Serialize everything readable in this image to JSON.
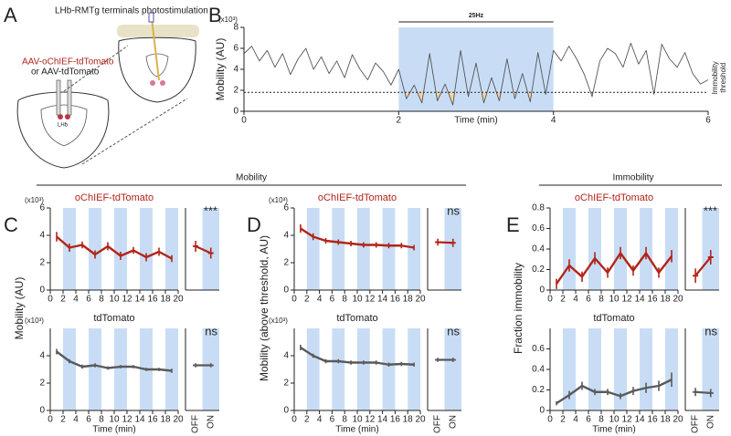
{
  "figure": {
    "letters": [
      "A",
      "B",
      "C",
      "D",
      "E"
    ],
    "groups": [
      "Mobility",
      "Immobility"
    ]
  },
  "diagram": {
    "title": "LHb-RMTg terminals photostimulation",
    "virus": "AAV-oChIEF-tdTomato",
    "virus_alt": "or AAV-tdTomato",
    "region": "LHb"
  },
  "chart_data": [
    {
      "type": "line",
      "x": [
        0,
        0.1,
        0.2,
        0.3,
        0.4,
        0.5,
        0.6,
        0.7,
        0.8,
        0.9,
        1,
        1.1,
        1.2,
        1.3,
        1.4,
        1.5,
        1.6,
        1.7,
        1.8,
        1.9,
        2,
        2.1,
        2.2,
        2.3,
        2.4,
        2.5,
        2.6,
        2.7,
        2.8,
        2.9,
        3,
        3.1,
        3.2,
        3.3,
        3.4,
        3.5,
        3.6,
        3.7,
        3.8,
        3.9,
        4,
        4.1,
        4.2,
        4.3,
        4.4,
        4.5,
        4.6,
        4.7,
        4.8,
        4.9,
        5,
        5.1,
        5.2,
        5.3,
        5.4,
        5.5,
        5.6,
        5.7,
        5.8,
        5.9,
        6
      ],
      "values": [
        5.5,
        6.2,
        4.8,
        5.8,
        4.2,
        5.5,
        3.5,
        5.0,
        6.0,
        4.0,
        5.2,
        3.6,
        4.8,
        3.2,
        5.4,
        4.0,
        3.0,
        4.6,
        3.8,
        2.5,
        4.0,
        1.2,
        2.5,
        0.8,
        5.5,
        1.0,
        2.6,
        0.6,
        5.8,
        1.4,
        4.6,
        0.8,
        3.2,
        1.0,
        5.0,
        1.2,
        3.6,
        0.9,
        5.6,
        1.6,
        5.8,
        4.8,
        6.2,
        5.0,
        3.5,
        1.4,
        4.8,
        6.0,
        5.5,
        4.2,
        6.5,
        4.5,
        5.8,
        1.6,
        6.4,
        5.0,
        4.2,
        5.6,
        3.6,
        2.6,
        3.0
      ],
      "color": "#555555",
      "xlim": [
        0,
        6
      ],
      "xticks": [
        0,
        2,
        4,
        6
      ],
      "ylim": [
        0,
        8
      ],
      "yticks": [
        0,
        2,
        4,
        6,
        8
      ],
      "y_label": "Mobility (AU)",
      "x_label": "Time (min)",
      "multiplier": "(x10³)",
      "shade": [
        2,
        4
      ],
      "shade_color": "#c8ddf5",
      "shade_label": "25Hz",
      "threshold": 1.8,
      "threshold_label": [
        "Immobility",
        "threshold"
      ],
      "fill_color": "#f6d3a4"
    },
    {
      "type": "timecourse",
      "title": "oChIEF-tdTomato",
      "title_color": "#b22418",
      "color": "#b22418",
      "x": [
        1,
        3,
        5,
        7,
        9,
        11,
        13,
        15,
        17,
        19
      ],
      "values": [
        3.9,
        3.1,
        3.3,
        2.6,
        3.2,
        2.5,
        2.9,
        2.4,
        2.8,
        2.3
      ],
      "errors": [
        0.35,
        0.3,
        0.25,
        0.3,
        0.3,
        0.3,
        0.25,
        0.3,
        0.3,
        0.25
      ],
      "xlim": [
        0,
        20
      ],
      "xticks": [
        0,
        2,
        4,
        6,
        8,
        10,
        12,
        14,
        16,
        18,
        20
      ],
      "ylim": [
        0,
        6
      ],
      "yticks": [
        0,
        2,
        4,
        6
      ],
      "multiplier": "(x10³)",
      "y_label": "Mobility (AU)",
      "stripes": [
        [
          2,
          4
        ],
        [
          6,
          8
        ],
        [
          10,
          12
        ],
        [
          14,
          16
        ],
        [
          18,
          20
        ]
      ],
      "stripe_color": "#c8ddf5"
    },
    {
      "type": "paired",
      "values": [
        3.2,
        2.7
      ],
      "errors": [
        0.4,
        0.4
      ],
      "color": "#b22418",
      "ylim": [
        0,
        6
      ],
      "annotation": "***",
      "stripe_color": "#c8ddf5"
    },
    {
      "type": "timecourse",
      "title": "tdTomato",
      "color": "#5a5a5a",
      "x": [
        1,
        3,
        5,
        7,
        9,
        11,
        13,
        15,
        17,
        19
      ],
      "values": [
        4.3,
        3.6,
        3.2,
        3.3,
        3.1,
        3.2,
        3.2,
        3.0,
        3.0,
        2.9
      ],
      "errors": [
        0.2,
        0.15,
        0.15,
        0.15,
        0.12,
        0.12,
        0.12,
        0.12,
        0.12,
        0.15
      ],
      "xlim": [
        0,
        20
      ],
      "xticks": [
        0,
        2,
        4,
        6,
        8,
        10,
        12,
        14,
        16,
        18,
        20
      ],
      "ylim": [
        0,
        6
      ],
      "yticks": [
        0,
        2,
        4
      ],
      "multiplier": "(x10³)",
      "x_label": "Time (min)",
      "stripes": [
        [
          2,
          4
        ],
        [
          6,
          8
        ],
        [
          10,
          12
        ],
        [
          14,
          16
        ],
        [
          18,
          20
        ]
      ],
      "stripe_color": "#c8ddf5"
    },
    {
      "type": "paired",
      "categories": [
        "OFF",
        "ON"
      ],
      "values": [
        3.3,
        3.3
      ],
      "errors": [
        0.15,
        0.15
      ],
      "color": "#5a5a5a",
      "ylim": [
        0,
        6
      ],
      "annotation": "ns",
      "stripe_color": "#c8ddf5"
    },
    {
      "type": "timecourse",
      "title": "oChIEF-tdTomato",
      "title_color": "#b22418",
      "color": "#b22418",
      "x": [
        1,
        3,
        5,
        7,
        9,
        11,
        13,
        15,
        17,
        19
      ],
      "values": [
        4.5,
        3.9,
        3.6,
        3.5,
        3.4,
        3.3,
        3.3,
        3.25,
        3.25,
        3.1
      ],
      "errors": [
        0.3,
        0.25,
        0.2,
        0.2,
        0.2,
        0.2,
        0.2,
        0.2,
        0.2,
        0.2
      ],
      "xlim": [
        0,
        20
      ],
      "xticks": [
        0,
        2,
        4,
        6,
        8,
        10,
        12,
        14,
        16,
        18,
        20
      ],
      "ylim": [
        0,
        6
      ],
      "yticks": [
        0,
        2,
        4,
        6
      ],
      "multiplier": "(x10³)",
      "y_label": "Mobility (above threshold, AU)",
      "stripes": [
        [
          2,
          4
        ],
        [
          6,
          8
        ],
        [
          10,
          12
        ],
        [
          14,
          16
        ],
        [
          18,
          20
        ]
      ],
      "stripe_color": "#c8ddf5"
    },
    {
      "type": "paired",
      "values": [
        3.5,
        3.45
      ],
      "errors": [
        0.25,
        0.3
      ],
      "color": "#b22418",
      "ylim": [
        0,
        6
      ],
      "annotation": "ns",
      "stripe_color": "#c8ddf5"
    },
    {
      "type": "timecourse",
      "title": "tdTomato",
      "color": "#5a5a5a",
      "x": [
        1,
        3,
        5,
        7,
        9,
        11,
        13,
        15,
        17,
        19
      ],
      "values": [
        4.6,
        4.0,
        3.6,
        3.6,
        3.5,
        3.5,
        3.5,
        3.35,
        3.4,
        3.35
      ],
      "errors": [
        0.2,
        0.15,
        0.15,
        0.15,
        0.15,
        0.15,
        0.15,
        0.15,
        0.15,
        0.15
      ],
      "xlim": [
        0,
        20
      ],
      "xticks": [
        0,
        2,
        4,
        6,
        8,
        10,
        12,
        14,
        16,
        18,
        20
      ],
      "ylim": [
        0,
        6
      ],
      "yticks": [
        0,
        2,
        4
      ],
      "multiplier": "(x10³)",
      "x_label": "Time (min)",
      "stripes": [
        [
          2,
          4
        ],
        [
          6,
          8
        ],
        [
          10,
          12
        ],
        [
          14,
          16
        ],
        [
          18,
          20
        ]
      ],
      "stripe_color": "#c8ddf5"
    },
    {
      "type": "paired",
      "categories": [
        "OFF",
        "ON"
      ],
      "values": [
        3.7,
        3.7
      ],
      "errors": [
        0.15,
        0.15
      ],
      "color": "#5a5a5a",
      "ylim": [
        0,
        6
      ],
      "annotation": "ns",
      "stripe_color": "#c8ddf5"
    },
    {
      "type": "timecourse",
      "title": "oChIEF-tdTomato",
      "title_color": "#b22418",
      "color": "#b22418",
      "x": [
        1,
        3,
        5,
        7,
        9,
        11,
        13,
        15,
        17,
        19
      ],
      "values": [
        0.06,
        0.24,
        0.13,
        0.31,
        0.17,
        0.36,
        0.19,
        0.36,
        0.17,
        0.33
      ],
      "errors": [
        0.05,
        0.06,
        0.05,
        0.06,
        0.05,
        0.06,
        0.05,
        0.06,
        0.05,
        0.06
      ],
      "xlim": [
        0,
        20
      ],
      "xticks": [
        0,
        2,
        4,
        6,
        8,
        10,
        12,
        14,
        16,
        18,
        20
      ],
      "ylim": [
        0,
        0.8
      ],
      "yticks": [
        0,
        0.2,
        0.4,
        0.6,
        0.8
      ],
      "y_label": "Fraction immobility",
      "stripes": [
        [
          2,
          4
        ],
        [
          6,
          8
        ],
        [
          10,
          12
        ],
        [
          14,
          16
        ],
        [
          18,
          20
        ]
      ],
      "stripe_color": "#c8ddf5"
    },
    {
      "type": "paired",
      "values": [
        0.14,
        0.32
      ],
      "errors": [
        0.07,
        0.07
      ],
      "color": "#b22418",
      "ylim": [
        0,
        0.8
      ],
      "annotation": "***",
      "stripe_color": "#c8ddf5"
    },
    {
      "type": "timecourse",
      "title": "tdTomato",
      "color": "#5a5a5a",
      "x": [
        1,
        3,
        5,
        7,
        9,
        11,
        13,
        15,
        17,
        19
      ],
      "values": [
        0.07,
        0.15,
        0.24,
        0.18,
        0.18,
        0.14,
        0.19,
        0.22,
        0.24,
        0.3
      ],
      "errors": [
        0.02,
        0.04,
        0.04,
        0.03,
        0.03,
        0.03,
        0.04,
        0.05,
        0.05,
        0.07
      ],
      "xlim": [
        0,
        20
      ],
      "xticks": [
        0,
        2,
        4,
        6,
        8,
        10,
        12,
        14,
        16,
        18,
        20
      ],
      "ylim": [
        0,
        0.8
      ],
      "yticks": [
        0,
        0.2,
        0.4,
        0.6
      ],
      "x_label": "Time (min)",
      "stripes": [
        [
          2,
          4
        ],
        [
          6,
          8
        ],
        [
          10,
          12
        ],
        [
          14,
          16
        ],
        [
          18,
          20
        ]
      ],
      "stripe_color": "#c8ddf5"
    },
    {
      "type": "paired",
      "categories": [
        "OFF",
        "ON"
      ],
      "values": [
        0.18,
        0.17
      ],
      "errors": [
        0.04,
        0.04
      ],
      "color": "#5a5a5a",
      "ylim": [
        0,
        0.8
      ],
      "annotation": "ns",
      "stripe_color": "#c8ddf5"
    }
  ]
}
